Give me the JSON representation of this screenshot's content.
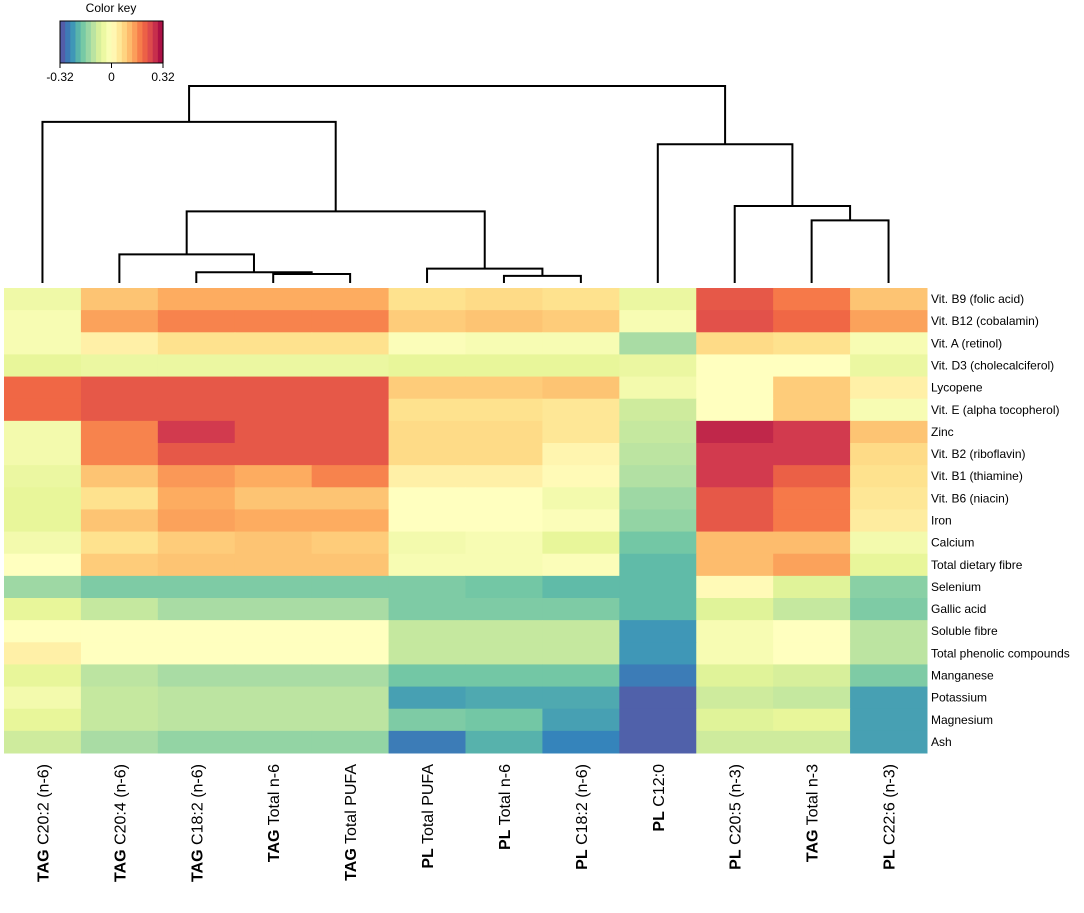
{
  "chart_data": {
    "type": "heatmap",
    "title": "",
    "color_key": {
      "title": "Color key",
      "min": -0.32,
      "max": 0.32,
      "tick_labels": [
        "-0.32",
        "0",
        "0.32"
      ],
      "tick_values": [
        -0.32,
        0,
        0.32
      ],
      "palette": [
        "#5e4fa2",
        "#3288bd",
        "#66c2a5",
        "#abdda4",
        "#e6f598",
        "#ffffbf",
        "#fee08b",
        "#fdae61",
        "#f46d43",
        "#d53e4f",
        "#9e0142"
      ]
    },
    "columns": [
      {
        "prefix": "TAG",
        "label": "C20:2 (n-6)"
      },
      {
        "prefix": "TAG",
        "label": "C20:4 (n-6)"
      },
      {
        "prefix": "TAG",
        "label": "C18:2 (n-6)"
      },
      {
        "prefix": "TAG",
        "label": "Total n-6"
      },
      {
        "prefix": "TAG",
        "label": "Total PUFA"
      },
      {
        "prefix": "PL",
        "label": "Total PUFA"
      },
      {
        "prefix": "PL",
        "label": "Total n-6"
      },
      {
        "prefix": "PL",
        "label": "C18:2 (n-6)"
      },
      {
        "prefix": "PL",
        "label": "C12:0"
      },
      {
        "prefix": "PL",
        "label": "C20:5 (n-3)"
      },
      {
        "prefix": "TAG",
        "label": "Total n-3"
      },
      {
        "prefix": "PL",
        "label": "C22:6 (n-3)"
      }
    ],
    "rows": [
      "Vit. B9 (folic acid)",
      "Vit. B12 (cobalamin)",
      "Vit. A (retinol)",
      "Vit. D3 (cholecalciferol)",
      "Lycopene",
      "Vit. E (alpha tocopherol)",
      "Zinc",
      "Vit. B2 (riboflavin)",
      "Vit. B1 (thiamine)",
      "Vit. B6 (niacin)",
      "Iron",
      "Calcium",
      "Total dietary fibre",
      "Selenium",
      "Gallic acid",
      "Soluble fibre",
      "Total phenolic compounds",
      "Manganese",
      "Potassium",
      "Magnesium",
      "Ash"
    ],
    "values": [
      [
        -0.04,
        0.1,
        0.13,
        0.13,
        0.13,
        0.06,
        0.07,
        0.06,
        -0.05,
        0.22,
        0.18,
        0.1
      ],
      [
        -0.02,
        0.14,
        0.17,
        0.17,
        0.17,
        0.09,
        0.1,
        0.09,
        -0.02,
        0.23,
        0.2,
        0.14
      ],
      [
        -0.02,
        0.03,
        0.06,
        0.06,
        0.06,
        -0.01,
        -0.02,
        -0.02,
        -0.13,
        0.07,
        0.06,
        -0.02
      ],
      [
        -0.06,
        -0.05,
        -0.05,
        -0.05,
        -0.05,
        -0.06,
        -0.06,
        -0.06,
        -0.05,
        0.0,
        0.0,
        -0.05
      ],
      [
        0.2,
        0.22,
        0.22,
        0.22,
        0.22,
        0.09,
        0.09,
        0.1,
        -0.03,
        0.0,
        0.09,
        0.03
      ],
      [
        0.2,
        0.22,
        0.22,
        0.22,
        0.22,
        0.06,
        0.06,
        0.05,
        -0.09,
        0.0,
        0.09,
        -0.02
      ],
      [
        -0.03,
        0.17,
        0.26,
        0.22,
        0.22,
        0.07,
        0.07,
        0.05,
        -0.1,
        0.28,
        0.26,
        0.1
      ],
      [
        -0.03,
        0.17,
        0.22,
        0.22,
        0.22,
        0.07,
        0.07,
        0.02,
        -0.11,
        0.26,
        0.26,
        0.07
      ],
      [
        -0.05,
        0.1,
        0.15,
        0.13,
        0.17,
        0.03,
        0.03,
        0.01,
        -0.12,
        0.26,
        0.21,
        0.06
      ],
      [
        -0.06,
        0.06,
        0.13,
        0.1,
        0.1,
        0.0,
        0.0,
        -0.03,
        -0.14,
        0.22,
        0.18,
        0.05
      ],
      [
        -0.06,
        0.1,
        0.14,
        0.13,
        0.13,
        0.0,
        0.0,
        -0.01,
        -0.15,
        0.22,
        0.18,
        0.04
      ],
      [
        -0.03,
        0.06,
        0.09,
        0.1,
        0.09,
        -0.03,
        -0.02,
        -0.06,
        -0.18,
        0.11,
        0.11,
        -0.03
      ],
      [
        0.0,
        0.09,
        0.1,
        0.1,
        0.1,
        -0.02,
        -0.02,
        -0.01,
        -0.2,
        0.11,
        0.14,
        -0.06
      ],
      [
        -0.14,
        -0.17,
        -0.17,
        -0.17,
        -0.17,
        -0.17,
        -0.18,
        -0.2,
        -0.2,
        0.01,
        -0.07,
        -0.16
      ],
      [
        -0.06,
        -0.1,
        -0.13,
        -0.13,
        -0.13,
        -0.17,
        -0.17,
        -0.17,
        -0.2,
        -0.07,
        -0.1,
        -0.17
      ],
      [
        0.0,
        0.0,
        0.0,
        0.0,
        0.0,
        -0.1,
        -0.1,
        -0.1,
        -0.24,
        -0.02,
        0.0,
        -0.11
      ],
      [
        0.03,
        0.0,
        0.0,
        0.0,
        0.0,
        -0.1,
        -0.1,
        -0.1,
        -0.24,
        -0.02,
        0.0,
        -0.11
      ],
      [
        -0.06,
        -0.11,
        -0.13,
        -0.13,
        -0.13,
        -0.18,
        -0.18,
        -0.18,
        -0.27,
        -0.07,
        -0.08,
        -0.17
      ],
      [
        -0.03,
        -0.1,
        -0.11,
        -0.11,
        -0.11,
        -0.23,
        -0.22,
        -0.22,
        -0.3,
        -0.09,
        -0.1,
        -0.23
      ],
      [
        -0.06,
        -0.1,
        -0.11,
        -0.11,
        -0.11,
        -0.17,
        -0.18,
        -0.23,
        -0.3,
        -0.07,
        -0.06,
        -0.23
      ],
      [
        -0.09,
        -0.13,
        -0.15,
        -0.15,
        -0.15,
        -0.27,
        -0.21,
        -0.26,
        -0.3,
        -0.09,
        -0.09,
        -0.23
      ]
    ],
    "dendrogram": {
      "description": "column clustering",
      "merges": [
        [
          6,
          7,
          0.08
        ],
        [
          3,
          4,
          0.1
        ],
        [
          2,
          3,
          0.12
        ],
        [
          5,
          6,
          0.16
        ],
        [
          1,
          2,
          0.32
        ],
        [
          10,
          11,
          0.7
        ],
        [
          9,
          10,
          0.86
        ],
        [
          1,
          5,
          0.8
        ],
        [
          8,
          9,
          1.55
        ],
        [
          0,
          1,
          1.8
        ],
        [
          0,
          8,
          2.2
        ]
      ]
    }
  }
}
